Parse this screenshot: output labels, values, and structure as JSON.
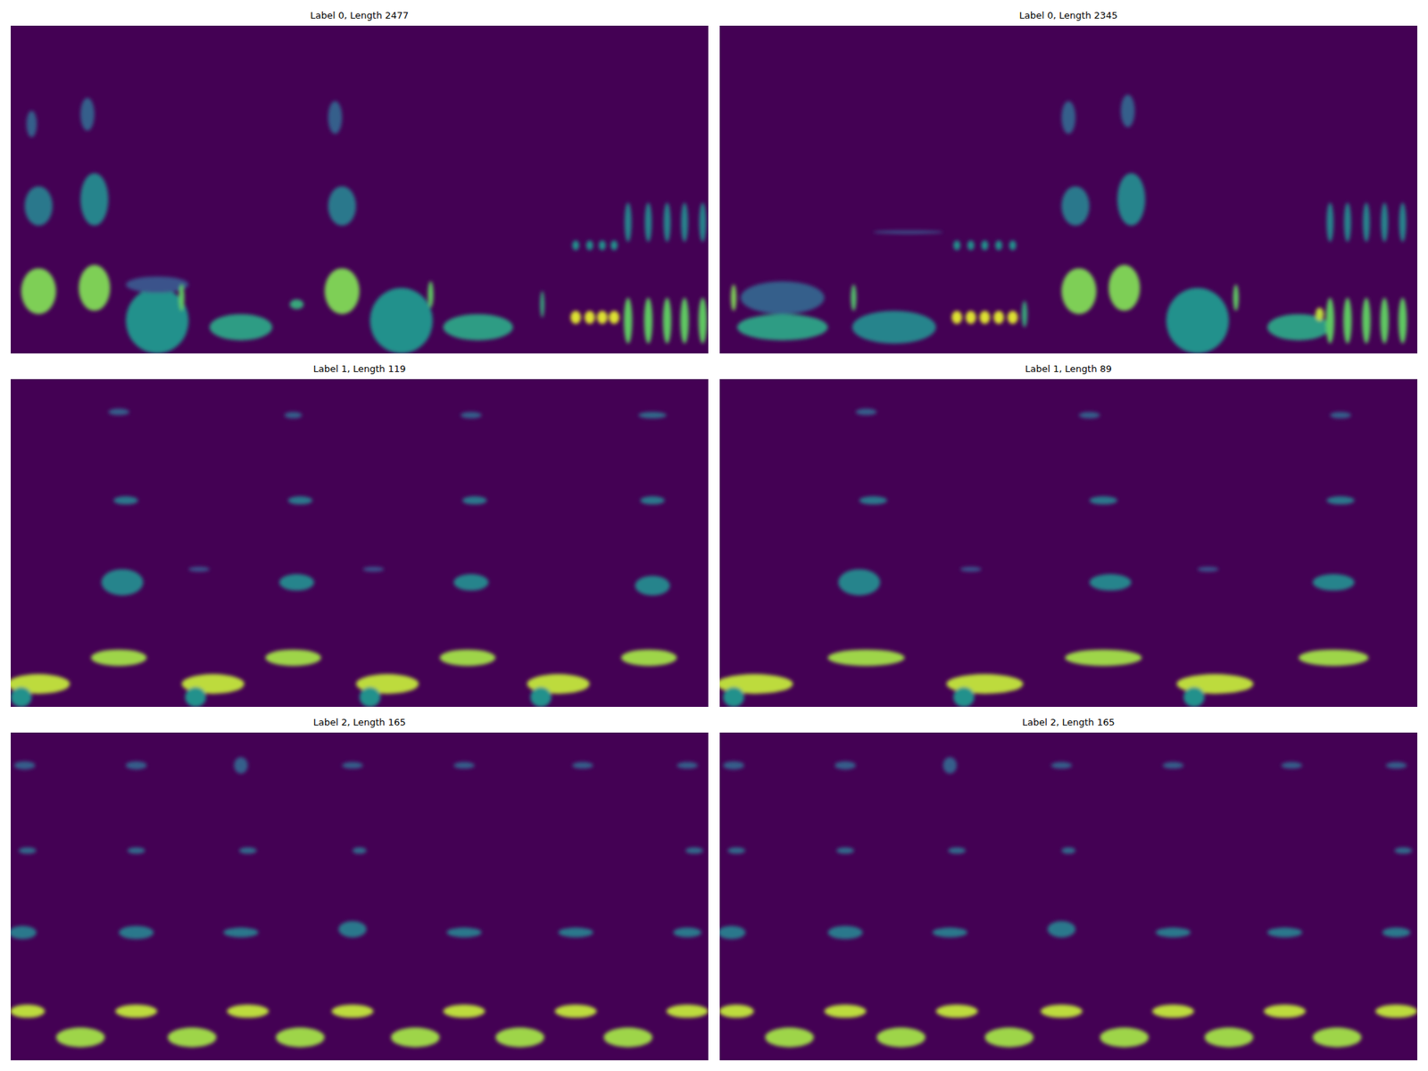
{
  "chart_data": [
    {
      "type": "heatmap",
      "title": "Label 0, Length 2477",
      "xlim": [
        0,
        1
      ],
      "ylim": [
        0,
        1
      ],
      "tick_labels": false,
      "blobs": [
        [
          0.04,
          0.19,
          0.05,
          0.14,
          0.8
        ],
        [
          0.12,
          0.2,
          0.045,
          0.14,
          0.8
        ],
        [
          0.04,
          0.45,
          0.04,
          0.12,
          0.4
        ],
        [
          0.12,
          0.47,
          0.04,
          0.16,
          0.45
        ],
        [
          0.03,
          0.7,
          0.015,
          0.08,
          0.3
        ],
        [
          0.11,
          0.73,
          0.02,
          0.1,
          0.3
        ],
        [
          0.21,
          0.1,
          0.09,
          0.2,
          0.5
        ],
        [
          0.21,
          0.21,
          0.09,
          0.05,
          0.25
        ],
        [
          0.245,
          0.17,
          0.008,
          0.08,
          0.75
        ],
        [
          0.33,
          0.08,
          0.09,
          0.08,
          0.55
        ],
        [
          0.41,
          0.15,
          0.02,
          0.03,
          0.6
        ],
        [
          0.475,
          0.19,
          0.05,
          0.14,
          0.8
        ],
        [
          0.475,
          0.45,
          0.04,
          0.12,
          0.4
        ],
        [
          0.465,
          0.72,
          0.02,
          0.1,
          0.3
        ],
        [
          0.56,
          0.1,
          0.09,
          0.2,
          0.5
        ],
        [
          0.602,
          0.18,
          0.008,
          0.08,
          0.75
        ],
        [
          0.67,
          0.08,
          0.1,
          0.08,
          0.55
        ],
        [
          0.762,
          0.15,
          0.006,
          0.08,
          0.6
        ],
        [
          0.81,
          0.11,
          0.015,
          0.04,
          0.95
        ],
        [
          0.83,
          0.11,
          0.015,
          0.04,
          0.95
        ],
        [
          0.848,
          0.11,
          0.015,
          0.04,
          0.95
        ],
        [
          0.865,
          0.11,
          0.015,
          0.04,
          0.95
        ],
        [
          0.81,
          0.33,
          0.01,
          0.03,
          0.5
        ],
        [
          0.83,
          0.33,
          0.01,
          0.03,
          0.5
        ],
        [
          0.848,
          0.33,
          0.01,
          0.03,
          0.5
        ],
        [
          0.865,
          0.33,
          0.01,
          0.03,
          0.5
        ],
        [
          0.885,
          0.1,
          0.012,
          0.14,
          0.75
        ],
        [
          0.914,
          0.1,
          0.012,
          0.14,
          0.75
        ],
        [
          0.941,
          0.1,
          0.012,
          0.14,
          0.75
        ],
        [
          0.966,
          0.1,
          0.012,
          0.14,
          0.75
        ],
        [
          0.992,
          0.1,
          0.012,
          0.14,
          0.75
        ],
        [
          0.885,
          0.4,
          0.01,
          0.12,
          0.45
        ],
        [
          0.914,
          0.4,
          0.01,
          0.12,
          0.45
        ],
        [
          0.941,
          0.4,
          0.01,
          0.12,
          0.45
        ],
        [
          0.966,
          0.4,
          0.01,
          0.12,
          0.45
        ],
        [
          0.992,
          0.4,
          0.01,
          0.12,
          0.45
        ]
      ]
    },
    {
      "type": "heatmap",
      "title": "Label 0, Length 2345",
      "xlim": [
        0,
        1
      ],
      "ylim": [
        0,
        1
      ],
      "tick_labels": false,
      "blobs": [
        [
          0.02,
          0.17,
          0.008,
          0.08,
          0.8
        ],
        [
          0.09,
          0.08,
          0.13,
          0.08,
          0.55
        ],
        [
          0.09,
          0.17,
          0.12,
          0.1,
          0.3
        ],
        [
          0.192,
          0.17,
          0.008,
          0.08,
          0.7
        ],
        [
          0.25,
          0.08,
          0.12,
          0.1,
          0.45
        ],
        [
          0.34,
          0.11,
          0.015,
          0.04,
          0.95
        ],
        [
          0.36,
          0.11,
          0.015,
          0.04,
          0.95
        ],
        [
          0.38,
          0.11,
          0.015,
          0.04,
          0.95
        ],
        [
          0.4,
          0.11,
          0.015,
          0.04,
          0.95
        ],
        [
          0.42,
          0.11,
          0.015,
          0.04,
          0.95
        ],
        [
          0.34,
          0.33,
          0.01,
          0.03,
          0.5
        ],
        [
          0.36,
          0.33,
          0.01,
          0.03,
          0.5
        ],
        [
          0.38,
          0.33,
          0.01,
          0.03,
          0.5
        ],
        [
          0.4,
          0.33,
          0.01,
          0.03,
          0.5
        ],
        [
          0.42,
          0.33,
          0.01,
          0.03,
          0.5
        ],
        [
          0.437,
          0.12,
          0.008,
          0.08,
          0.6
        ],
        [
          0.27,
          0.37,
          0.1,
          0.01,
          0.25
        ],
        [
          0.515,
          0.19,
          0.05,
          0.14,
          0.8
        ],
        [
          0.58,
          0.2,
          0.045,
          0.14,
          0.8
        ],
        [
          0.51,
          0.45,
          0.04,
          0.12,
          0.4
        ],
        [
          0.59,
          0.47,
          0.04,
          0.16,
          0.45
        ],
        [
          0.5,
          0.72,
          0.02,
          0.1,
          0.3
        ],
        [
          0.585,
          0.74,
          0.02,
          0.1,
          0.3
        ],
        [
          0.685,
          0.1,
          0.09,
          0.2,
          0.5
        ],
        [
          0.74,
          0.17,
          0.008,
          0.08,
          0.75
        ],
        [
          0.83,
          0.08,
          0.09,
          0.08,
          0.55
        ],
        [
          0.86,
          0.12,
          0.012,
          0.04,
          0.9
        ],
        [
          0.875,
          0.1,
          0.012,
          0.14,
          0.75
        ],
        [
          0.9,
          0.1,
          0.012,
          0.14,
          0.75
        ],
        [
          0.927,
          0.1,
          0.012,
          0.14,
          0.75
        ],
        [
          0.953,
          0.1,
          0.012,
          0.14,
          0.75
        ],
        [
          0.979,
          0.1,
          0.012,
          0.14,
          0.75
        ],
        [
          0.875,
          0.4,
          0.01,
          0.12,
          0.45
        ],
        [
          0.9,
          0.4,
          0.01,
          0.12,
          0.45
        ],
        [
          0.927,
          0.4,
          0.01,
          0.12,
          0.45
        ],
        [
          0.953,
          0.4,
          0.01,
          0.12,
          0.45
        ],
        [
          0.979,
          0.4,
          0.01,
          0.12,
          0.45
        ]
      ]
    },
    {
      "type": "heatmap",
      "title": "Label 1, Length 119",
      "xlim": [
        0,
        1
      ],
      "ylim": [
        0,
        1
      ],
      "tick_labels": false,
      "blobs": [
        [
          0.04,
          0.07,
          0.09,
          0.06,
          0.9
        ],
        [
          0.015,
          0.03,
          0.03,
          0.06,
          0.5
        ],
        [
          0.155,
          0.15,
          0.08,
          0.05,
          0.85
        ],
        [
          0.16,
          0.38,
          0.06,
          0.08,
          0.45
        ],
        [
          0.165,
          0.63,
          0.035,
          0.025,
          0.4
        ],
        [
          0.155,
          0.9,
          0.03,
          0.02,
          0.3
        ],
        [
          0.29,
          0.07,
          0.09,
          0.06,
          0.9
        ],
        [
          0.265,
          0.03,
          0.03,
          0.06,
          0.5
        ],
        [
          0.405,
          0.15,
          0.08,
          0.05,
          0.85
        ],
        [
          0.41,
          0.38,
          0.05,
          0.05,
          0.45
        ],
        [
          0.415,
          0.63,
          0.035,
          0.025,
          0.4
        ],
        [
          0.405,
          0.89,
          0.025,
          0.02,
          0.3
        ],
        [
          0.54,
          0.07,
          0.09,
          0.06,
          0.9
        ],
        [
          0.515,
          0.03,
          0.03,
          0.06,
          0.5
        ],
        [
          0.655,
          0.15,
          0.08,
          0.05,
          0.85
        ],
        [
          0.66,
          0.38,
          0.05,
          0.05,
          0.45
        ],
        [
          0.665,
          0.63,
          0.035,
          0.025,
          0.4
        ],
        [
          0.66,
          0.89,
          0.03,
          0.02,
          0.3
        ],
        [
          0.785,
          0.07,
          0.09,
          0.06,
          0.9
        ],
        [
          0.76,
          0.03,
          0.03,
          0.06,
          0.5
        ],
        [
          0.915,
          0.15,
          0.08,
          0.05,
          0.85
        ],
        [
          0.92,
          0.37,
          0.05,
          0.06,
          0.45
        ],
        [
          0.92,
          0.63,
          0.035,
          0.025,
          0.4
        ],
        [
          0.92,
          0.89,
          0.04,
          0.02,
          0.35
        ],
        [
          0.27,
          0.42,
          0.03,
          0.015,
          0.25
        ],
        [
          0.52,
          0.42,
          0.03,
          0.015,
          0.25
        ]
      ]
    },
    {
      "type": "heatmap",
      "title": "Label 1, Length 89",
      "xlim": [
        0,
        1
      ],
      "ylim": [
        0,
        1
      ],
      "tick_labels": false,
      "blobs": [
        [
          0.05,
          0.07,
          0.11,
          0.06,
          0.9
        ],
        [
          0.02,
          0.03,
          0.03,
          0.06,
          0.5
        ],
        [
          0.21,
          0.15,
          0.11,
          0.05,
          0.85
        ],
        [
          0.2,
          0.38,
          0.06,
          0.08,
          0.45
        ],
        [
          0.22,
          0.63,
          0.04,
          0.025,
          0.4
        ],
        [
          0.21,
          0.9,
          0.03,
          0.02,
          0.3
        ],
        [
          0.38,
          0.07,
          0.11,
          0.06,
          0.9
        ],
        [
          0.35,
          0.03,
          0.03,
          0.06,
          0.5
        ],
        [
          0.55,
          0.15,
          0.11,
          0.05,
          0.85
        ],
        [
          0.56,
          0.38,
          0.06,
          0.05,
          0.45
        ],
        [
          0.55,
          0.63,
          0.04,
          0.025,
          0.4
        ],
        [
          0.53,
          0.89,
          0.03,
          0.02,
          0.3
        ],
        [
          0.71,
          0.07,
          0.11,
          0.06,
          0.9
        ],
        [
          0.68,
          0.03,
          0.03,
          0.06,
          0.5
        ],
        [
          0.88,
          0.15,
          0.1,
          0.05,
          0.85
        ],
        [
          0.88,
          0.38,
          0.06,
          0.05,
          0.45
        ],
        [
          0.89,
          0.63,
          0.04,
          0.025,
          0.4
        ],
        [
          0.89,
          0.89,
          0.03,
          0.02,
          0.3
        ],
        [
          0.36,
          0.42,
          0.03,
          0.015,
          0.25
        ],
        [
          0.7,
          0.42,
          0.03,
          0.015,
          0.25
        ]
      ]
    },
    {
      "type": "heatmap",
      "title": "Label 2, Length 165",
      "xlim": [
        0,
        1
      ],
      "ylim": [
        0,
        1
      ],
      "tick_labels": false,
      "blobs": [
        [
          0.024,
          0.15,
          0.05,
          0.04,
          0.9
        ],
        [
          0.18,
          0.15,
          0.06,
          0.04,
          0.9
        ],
        [
          0.34,
          0.15,
          0.06,
          0.04,
          0.9
        ],
        [
          0.49,
          0.15,
          0.06,
          0.04,
          0.9
        ],
        [
          0.65,
          0.15,
          0.06,
          0.04,
          0.9
        ],
        [
          0.81,
          0.15,
          0.06,
          0.04,
          0.9
        ],
        [
          0.97,
          0.15,
          0.06,
          0.04,
          0.9
        ],
        [
          0.1,
          0.07,
          0.07,
          0.06,
          0.85
        ],
        [
          0.26,
          0.07,
          0.07,
          0.06,
          0.85
        ],
        [
          0.415,
          0.07,
          0.07,
          0.06,
          0.85
        ],
        [
          0.58,
          0.07,
          0.07,
          0.06,
          0.85
        ],
        [
          0.73,
          0.07,
          0.07,
          0.06,
          0.85
        ],
        [
          0.885,
          0.07,
          0.07,
          0.06,
          0.85
        ],
        [
          0.017,
          0.39,
          0.04,
          0.04,
          0.4
        ],
        [
          0.18,
          0.39,
          0.05,
          0.04,
          0.4
        ],
        [
          0.33,
          0.39,
          0.05,
          0.03,
          0.4
        ],
        [
          0.49,
          0.4,
          0.04,
          0.05,
          0.4
        ],
        [
          0.65,
          0.39,
          0.05,
          0.03,
          0.4
        ],
        [
          0.81,
          0.39,
          0.05,
          0.03,
          0.4
        ],
        [
          0.97,
          0.39,
          0.04,
          0.03,
          0.4
        ],
        [
          0.024,
          0.64,
          0.025,
          0.02,
          0.35
        ],
        [
          0.18,
          0.64,
          0.025,
          0.02,
          0.35
        ],
        [
          0.34,
          0.64,
          0.025,
          0.02,
          0.35
        ],
        [
          0.5,
          0.64,
          0.02,
          0.02,
          0.35
        ],
        [
          0.98,
          0.64,
          0.025,
          0.02,
          0.35
        ],
        [
          0.02,
          0.9,
          0.03,
          0.025,
          0.3
        ],
        [
          0.18,
          0.9,
          0.03,
          0.025,
          0.3
        ],
        [
          0.33,
          0.9,
          0.02,
          0.05,
          0.3
        ],
        [
          0.49,
          0.9,
          0.03,
          0.02,
          0.3
        ],
        [
          0.65,
          0.9,
          0.03,
          0.02,
          0.3
        ],
        [
          0.82,
          0.9,
          0.03,
          0.02,
          0.3
        ],
        [
          0.97,
          0.9,
          0.03,
          0.02,
          0.3
        ]
      ]
    },
    {
      "type": "heatmap",
      "title": "Label 2, Length 165",
      "xlim": [
        0,
        1
      ],
      "ylim": [
        0,
        1
      ],
      "tick_labels": false,
      "blobs": [
        [
          0.024,
          0.15,
          0.05,
          0.04,
          0.9
        ],
        [
          0.18,
          0.15,
          0.06,
          0.04,
          0.9
        ],
        [
          0.34,
          0.15,
          0.06,
          0.04,
          0.9
        ],
        [
          0.49,
          0.15,
          0.06,
          0.04,
          0.9
        ],
        [
          0.65,
          0.15,
          0.06,
          0.04,
          0.9
        ],
        [
          0.81,
          0.15,
          0.06,
          0.04,
          0.9
        ],
        [
          0.97,
          0.15,
          0.06,
          0.04,
          0.9
        ],
        [
          0.1,
          0.07,
          0.07,
          0.06,
          0.85
        ],
        [
          0.26,
          0.07,
          0.07,
          0.06,
          0.85
        ],
        [
          0.415,
          0.07,
          0.07,
          0.06,
          0.85
        ],
        [
          0.58,
          0.07,
          0.07,
          0.06,
          0.85
        ],
        [
          0.73,
          0.07,
          0.07,
          0.06,
          0.85
        ],
        [
          0.885,
          0.07,
          0.07,
          0.06,
          0.85
        ],
        [
          0.017,
          0.39,
          0.04,
          0.04,
          0.4
        ],
        [
          0.18,
          0.39,
          0.05,
          0.04,
          0.4
        ],
        [
          0.33,
          0.39,
          0.05,
          0.03,
          0.4
        ],
        [
          0.49,
          0.4,
          0.04,
          0.05,
          0.4
        ],
        [
          0.65,
          0.39,
          0.05,
          0.03,
          0.4
        ],
        [
          0.81,
          0.39,
          0.05,
          0.03,
          0.4
        ],
        [
          0.97,
          0.39,
          0.04,
          0.03,
          0.4
        ],
        [
          0.024,
          0.64,
          0.025,
          0.02,
          0.35
        ],
        [
          0.18,
          0.64,
          0.025,
          0.02,
          0.35
        ],
        [
          0.34,
          0.64,
          0.025,
          0.02,
          0.35
        ],
        [
          0.5,
          0.64,
          0.02,
          0.02,
          0.35
        ],
        [
          0.98,
          0.64,
          0.025,
          0.02,
          0.35
        ],
        [
          0.02,
          0.9,
          0.03,
          0.025,
          0.3
        ],
        [
          0.18,
          0.9,
          0.03,
          0.025,
          0.3
        ],
        [
          0.33,
          0.9,
          0.02,
          0.05,
          0.3
        ],
        [
          0.49,
          0.9,
          0.03,
          0.02,
          0.3
        ],
        [
          0.65,
          0.9,
          0.03,
          0.02,
          0.3
        ],
        [
          0.82,
          0.9,
          0.03,
          0.02,
          0.3
        ],
        [
          0.97,
          0.9,
          0.03,
          0.02,
          0.3
        ]
      ]
    }
  ]
}
